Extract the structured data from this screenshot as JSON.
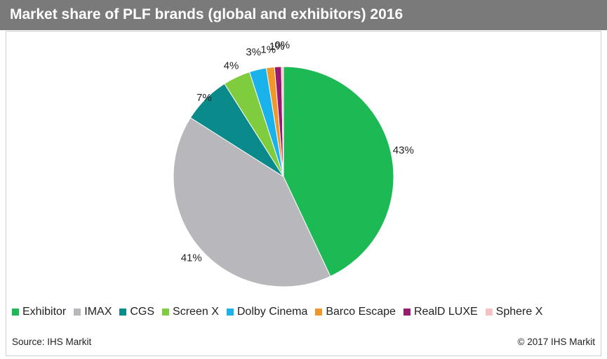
{
  "header": {
    "title": "Market share of PLF brands (global and exhibitors) 2016"
  },
  "chart_data": {
    "type": "pie",
    "title": "Market share of PLF brands (global and exhibitors) 2016",
    "slices": [
      {
        "label": "Exhibitor",
        "value": 43,
        "display": "43%",
        "color": "#1db954"
      },
      {
        "label": "IMAX",
        "value": 41,
        "display": "41%",
        "color": "#b8b8bc"
      },
      {
        "label": "CGS",
        "value": 7,
        "display": "7%",
        "color": "#0a8a8a"
      },
      {
        "label": "Screen X",
        "value": 4,
        "display": "4%",
        "color": "#7fcd3e"
      },
      {
        "label": "Dolby Cinema",
        "value": 2.5,
        "display": "3%",
        "color": "#1ab2ea"
      },
      {
        "label": "Barco Escape",
        "value": 1.2,
        "display": "1%",
        "color": "#f0962a"
      },
      {
        "label": "RealD LUXE",
        "value": 1,
        "display": "1%",
        "color": "#991a6e"
      },
      {
        "label": "Sphere X",
        "value": 0.3,
        "display": "0%",
        "color": "#f3c3c3"
      }
    ],
    "legend_position": "bottom"
  },
  "footer": {
    "source": "Source: IHS Markit",
    "copyright": "© 2017 IHS Markit"
  }
}
